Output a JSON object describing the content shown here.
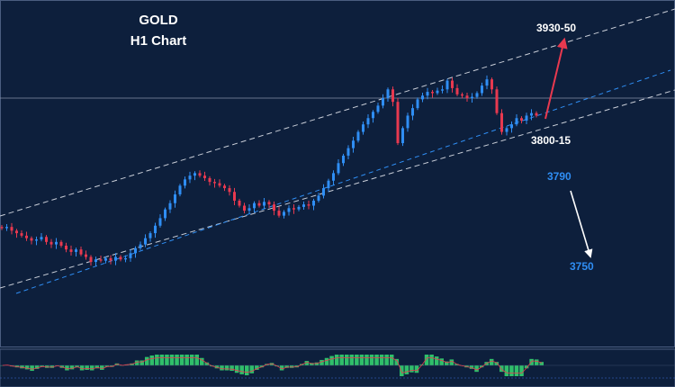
{
  "chart_data": {
    "type": "candlestick",
    "title": "GOLD",
    "subtitle": "H1 Chart",
    "timeframe": "H1",
    "colors": {
      "background": "#0d1f3c",
      "bull": "#2f8ef4",
      "bear": "#e8394f",
      "channel": "#c9ced8",
      "support": "#2f8ef4",
      "arrow_up": "#e8394f",
      "arrow_down": "#ffffff",
      "oscillator": "#2fbf6a",
      "oscillator_signal": "#e8394f"
    },
    "price_levels": {
      "target_up": "3930-50",
      "support_zone": "3800-15",
      "next_support": "3790",
      "lower_target": "3750"
    },
    "closes": [
      3768,
      3769,
      3766,
      3764,
      3762,
      3760,
      3758,
      3759,
      3761,
      3757,
      3755,
      3757,
      3754,
      3751,
      3749,
      3751,
      3747,
      3745,
      3741,
      3743,
      3742,
      3744,
      3742,
      3745,
      3743,
      3744,
      3748,
      3752,
      3755,
      3760,
      3764,
      3770,
      3776,
      3783,
      3788,
      3795,
      3802,
      3807,
      3810,
      3812,
      3810,
      3808,
      3805,
      3804,
      3802,
      3800,
      3797,
      3790,
      3786,
      3782,
      3784,
      3788,
      3786,
      3789,
      3787,
      3782,
      3778,
      3781,
      3784,
      3783,
      3785,
      3787,
      3786,
      3790,
      3794,
      3800,
      3806,
      3812,
      3820,
      3826,
      3832,
      3838,
      3845,
      3851,
      3856,
      3861,
      3866,
      3872,
      3879,
      3869,
      3836,
      3848,
      3858,
      3864,
      3871,
      3874,
      3877,
      3876,
      3878,
      3879,
      3886,
      3880,
      3875,
      3874,
      3872,
      3873,
      3876,
      3882,
      3887,
      3879,
      3860,
      3845,
      3848,
      3851,
      3856,
      3854,
      3858,
      3860,
      3858
    ]
  }
}
